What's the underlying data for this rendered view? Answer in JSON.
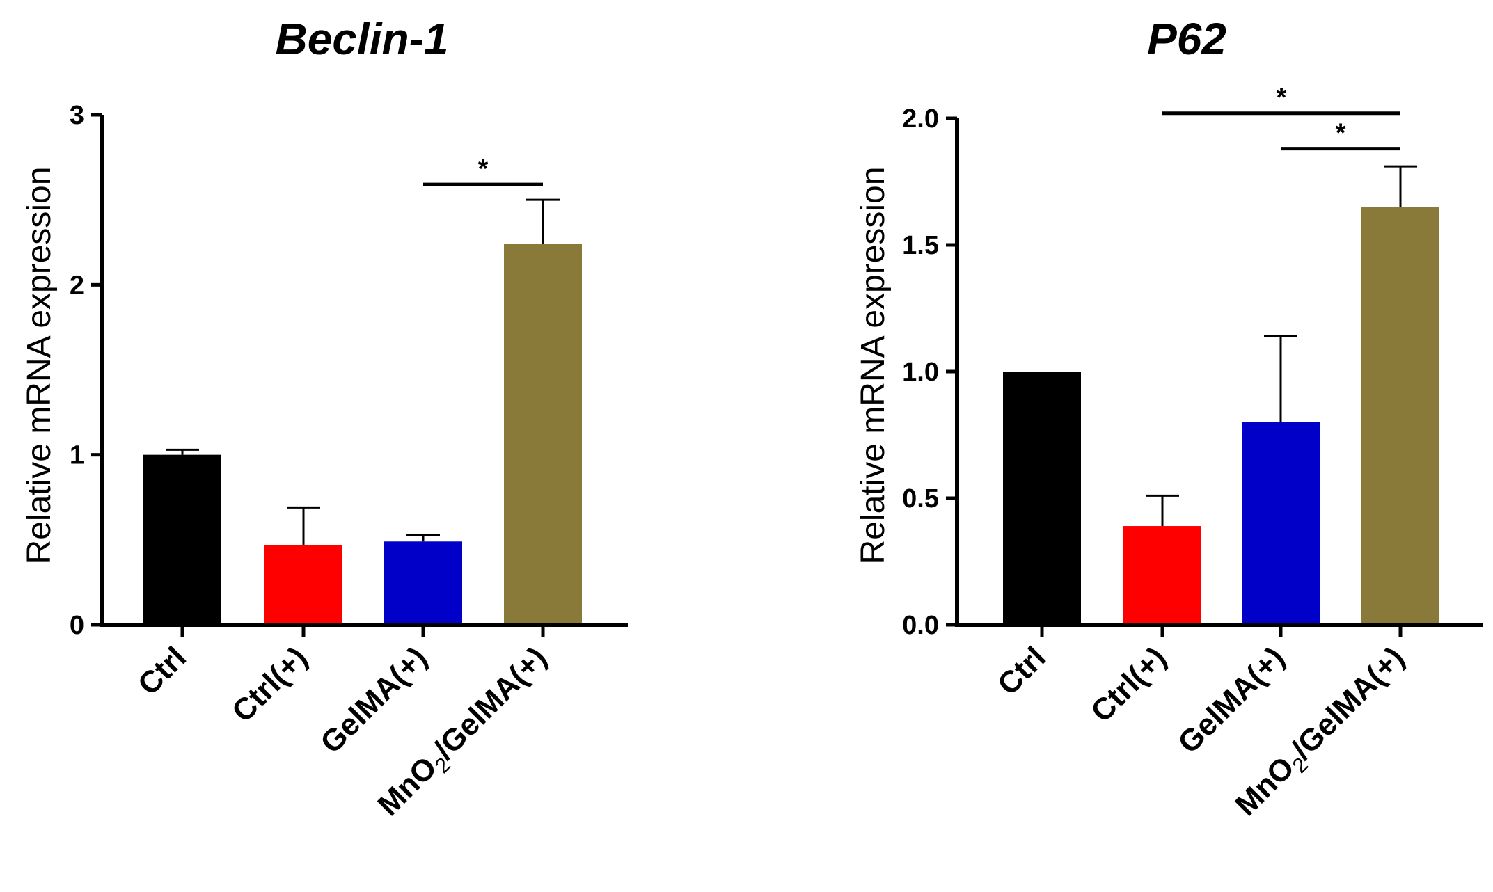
{
  "chart_data": [
    {
      "type": "bar",
      "title": "Beclin-1",
      "xlabel": "",
      "ylabel": "Relative mRNA expression",
      "categories": [
        "Ctrl",
        "Ctrl(+)",
        "GelMA(+)",
        "MnO2/GelMA(+)"
      ],
      "values": [
        1.0,
        0.47,
        0.49,
        2.24
      ],
      "errors": [
        0.03,
        0.22,
        0.04,
        0.26
      ],
      "colors": [
        "#000000",
        "#ff0000",
        "#0000c8",
        "#8a7a3a"
      ],
      "ylim": [
        0,
        3
      ],
      "yticks": [
        "0",
        "1",
        "2",
        "3"
      ],
      "significance": [
        {
          "from": 2,
          "to": 3,
          "label": "*",
          "y": 2.59
        }
      ]
    },
    {
      "type": "bar",
      "title": "P62",
      "xlabel": "",
      "ylabel": "Relative mRNA expression",
      "categories": [
        "Ctrl",
        "Ctrl(+)",
        "GelMA(+)",
        "MnO2/GelMA(+)"
      ],
      "values": [
        1.0,
        0.39,
        0.8,
        1.65
      ],
      "errors": [
        0.0,
        0.12,
        0.34,
        0.16
      ],
      "colors": [
        "#000000",
        "#ff0000",
        "#0000c8",
        "#8a7a3a"
      ],
      "ylim": [
        0,
        2
      ],
      "yticks": [
        "0.0",
        "0.5",
        "1.0",
        "1.5",
        "2.0"
      ],
      "significance": [
        {
          "from": 1,
          "to": 3,
          "label": "*",
          "y": 2.02
        },
        {
          "from": 2,
          "to": 3,
          "label": "*",
          "y": 1.88
        }
      ]
    }
  ]
}
